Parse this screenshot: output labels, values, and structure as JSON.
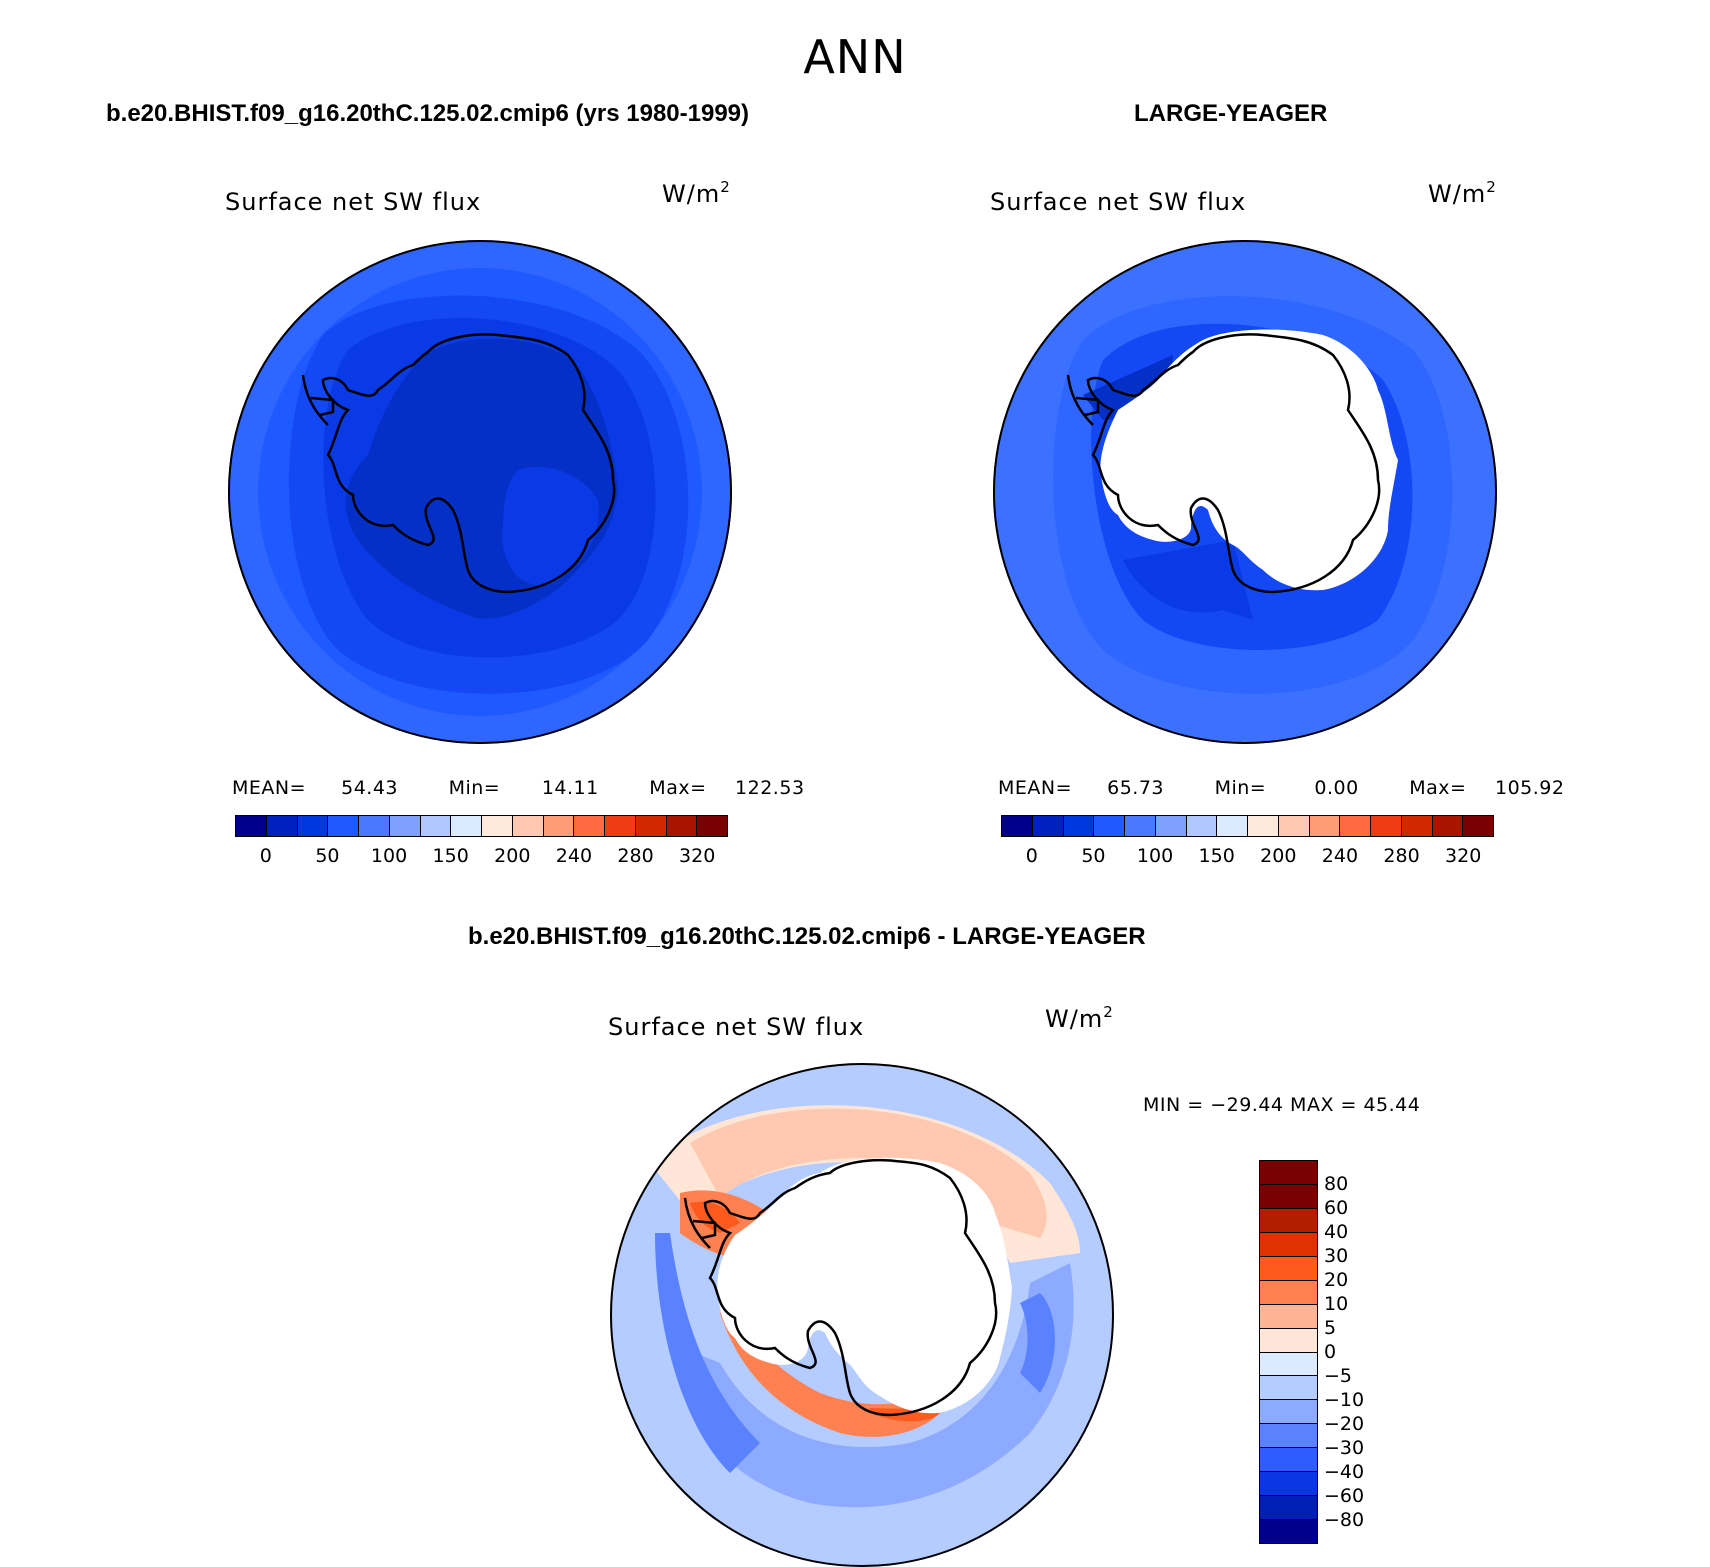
{
  "figure": {
    "season": "ANN"
  },
  "panel_model": {
    "case_title": "b.e20.BHIST.f09_g16.20thC.125.02.cmip6 (yrs 1980-1999)",
    "variable": "Surface net SW flux",
    "units_base": "W/m",
    "units_exp": "2",
    "mean_label": "MEAN=",
    "mean_value": "54.43",
    "min_label": "Min=",
    "min_value": "14.11",
    "max_label": "Max=",
    "max_value": "122.53"
  },
  "panel_obs": {
    "case_title": "LARGE-YEAGER",
    "variable": "Surface net SW flux",
    "units_base": "W/m",
    "units_exp": "2",
    "mean_label": "MEAN=",
    "mean_value": "65.73",
    "min_label": "Min=",
    "min_value": "0.00",
    "max_label": "Max=",
    "max_value": "105.92"
  },
  "panel_diff": {
    "case_title": "b.e20.BHIST.f09_g16.20thC.125.02.cmip6 - LARGE-YEAGER",
    "variable": "Surface net SW flux",
    "units_base": "W/m",
    "units_exp": "2",
    "minmax_text": "MIN = −29.44 MAX =  45.44"
  },
  "colorbar_abs": {
    "colors": [
      "#00008c",
      "#0020c0",
      "#0038e0",
      "#1e5aff",
      "#4a78ff",
      "#7ea0ff",
      "#b0c8ff",
      "#dceaff",
      "#ffe8dc",
      "#ffc8b0",
      "#ff9c78",
      "#ff6a40",
      "#f03c14",
      "#d22800",
      "#a81400",
      "#780000"
    ],
    "ticks": [
      "0",
      "50",
      "100",
      "150",
      "200",
      "240",
      "280",
      "320"
    ]
  },
  "colorbar_diff": {
    "colors": [
      "#780000",
      "#b41e00",
      "#e03200",
      "#ff5a1e",
      "#ff8050",
      "#ffb496",
      "#ffe6d6",
      "#dceaff",
      "#b4ccff",
      "#8caaff",
      "#5a82ff",
      "#2e5cff",
      "#0a36e6",
      "#0020b4",
      "#00008c"
    ],
    "ticks": [
      "80",
      "60",
      "40",
      "30",
      "20",
      "10",
      "5",
      "0",
      "−5",
      "−10",
      "−20",
      "−30",
      "−40",
      "−60",
      "−80"
    ]
  }
}
